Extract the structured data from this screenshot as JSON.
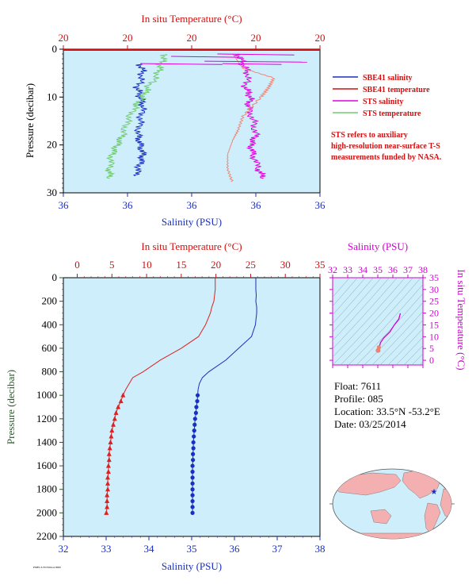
{
  "chart_data": [
    {
      "type": "line",
      "id": "near-surface",
      "title_top": "In situ Temperature (°C)",
      "xlabel_bottom": "Salinity (PSU)",
      "ylabel": "Pressure (decibar)",
      "top_ticks": [
        "20",
        "20",
        "20",
        "20",
        "20"
      ],
      "bottom_ticks": [
        "36",
        "36",
        "36",
        "36",
        "36"
      ],
      "y_ticks": [
        "0",
        "10",
        "20",
        "30"
      ],
      "ylim": [
        0,
        30
      ],
      "legend": [
        {
          "name": "SBE41 salinity",
          "color": "#1a2fbf"
        },
        {
          "name": "SBE41 temperature",
          "color": "#d01010"
        },
        {
          "name": "STS salinity",
          "color": "#e000e0"
        },
        {
          "name": "STS temperature",
          "color": "#70cc70"
        }
      ],
      "note": "STS refers to auxiliary high-resolution near-surface T-S measurements funded by NASA.",
      "series": [
        {
          "name": "SBE41 salinity",
          "pressure": [
            3,
            5,
            8,
            10,
            12,
            15,
            18,
            20,
            22,
            24,
            26.5
          ],
          "x": [
            0.3,
            0.31,
            0.29,
            0.3,
            0.31,
            0.3,
            0.29,
            0.3,
            0.31,
            0.3,
            0.28
          ]
        },
        {
          "name": "SBE41 temperature",
          "pressure": [
            0.5
          ],
          "x": [
            0.9
          ]
        },
        {
          "name": "STS salinity",
          "pressure": [
            1,
            3,
            5,
            8,
            10,
            12,
            15,
            18,
            20,
            22,
            25,
            27
          ],
          "x": [
            0.68,
            0.7,
            0.72,
            0.71,
            0.73,
            0.72,
            0.74,
            0.75,
            0.73,
            0.74,
            0.76,
            0.78
          ]
        },
        {
          "name": "STS temperature",
          "pressure": [
            1,
            3,
            5,
            8,
            10,
            12,
            15,
            18,
            20,
            22,
            25,
            27
          ],
          "x": [
            0.4,
            0.38,
            0.37,
            0.33,
            0.31,
            0.28,
            0.25,
            0.23,
            0.21,
            0.19,
            0.18,
            0.18
          ]
        }
      ]
    },
    {
      "type": "line",
      "id": "full-profile",
      "title_top": "In situ Temperature (°C)",
      "xlabel_bottom": "Salinity (PSU)",
      "ylabel": "Pressure (decibar)",
      "top_ticks": [
        "0",
        "5",
        "10",
        "15",
        "20",
        "25",
        "30",
        "35"
      ],
      "bottom_ticks": [
        "32",
        "33",
        "34",
        "35",
        "36",
        "37",
        "38"
      ],
      "y_ticks": [
        "0",
        "200",
        "400",
        "600",
        "800",
        "1000",
        "1200",
        "1400",
        "1600",
        "1800",
        "2000",
        "2200"
      ],
      "temp_range": [
        -2,
        35
      ],
      "sal_range": [
        32,
        38
      ],
      "ylim": [
        0,
        2200
      ],
      "series": [
        {
          "name": "temperature",
          "pressure": [
            0,
            50,
            100,
            150,
            200,
            250,
            300,
            400,
            500,
            600,
            700,
            800,
            850,
            900,
            950,
            1000,
            1050,
            1100,
            1150,
            1200,
            1250,
            1300,
            1350,
            1400,
            1450,
            1500,
            1550,
            1600,
            1650,
            1700,
            1750,
            1800,
            1850,
            1900,
            1950,
            2000
          ],
          "values": [
            19.9,
            19.9,
            19.9,
            19.8,
            19.7,
            19.4,
            19.2,
            18.5,
            17.5,
            15.0,
            12.0,
            9.5,
            8.0,
            7.5,
            7.0,
            6.6,
            6.3,
            5.9,
            5.6,
            5.4,
            5.2,
            5.0,
            4.9,
            4.8,
            4.7,
            4.6,
            4.6,
            4.5,
            4.5,
            4.4,
            4.4,
            4.4,
            4.3,
            4.3,
            4.3,
            4.2
          ]
        },
        {
          "name": "salinity",
          "pressure": [
            0,
            50,
            100,
            150,
            200,
            250,
            300,
            400,
            500,
            600,
            700,
            800,
            850,
            900,
            950,
            1000,
            1050,
            1100,
            1150,
            1200,
            1250,
            1300,
            1350,
            1400,
            1450,
            1500,
            1550,
            1600,
            1650,
            1700,
            1750,
            1800,
            1850,
            1900,
            1950,
            2000
          ],
          "values": [
            36.5,
            36.5,
            36.5,
            36.51,
            36.5,
            36.52,
            36.52,
            36.49,
            36.4,
            36.1,
            35.8,
            35.4,
            35.25,
            35.18,
            35.15,
            35.14,
            35.13,
            35.11,
            35.1,
            35.08,
            35.07,
            35.06,
            35.05,
            35.04,
            35.04,
            35.03,
            35.03,
            35.02,
            35.02,
            35.02,
            35.02,
            35.02,
            35.02,
            35.02,
            35.02,
            35.02
          ]
        }
      ]
    },
    {
      "type": "scatter",
      "id": "ts-diagram",
      "title_top": "Salinity (PSU)",
      "ylabel_right": "In situ Temperature (°C)",
      "x_ticks": [
        "32",
        "33",
        "34",
        "35",
        "36",
        "37",
        "38"
      ],
      "y_ticks": [
        "0",
        "5",
        "10",
        "15",
        "20",
        "25",
        "30",
        "35"
      ],
      "xlim": [
        32,
        38
      ],
      "ylim": [
        -2,
        35
      ],
      "curve": {
        "x": [
          36.5,
          36.4,
          36.1,
          35.8,
          35.4,
          35.18,
          35.1,
          35.05,
          35.03,
          35.02
        ],
        "y": [
          19.9,
          17.5,
          15.0,
          12.0,
          9.5,
          7.5,
          5.6,
          4.8,
          4.5,
          4.2
        ]
      }
    }
  ],
  "float_info": {
    "float": "Float: 7611",
    "profile": "Profile: 085",
    "location": "Location: 33.5°N -53.2°E",
    "date": "Date: 03/25/2014"
  },
  "map": {
    "marker": "star",
    "marker_color": "#1a2fbf"
  },
  "footer": "PMEL/UW/NOAA 0000"
}
